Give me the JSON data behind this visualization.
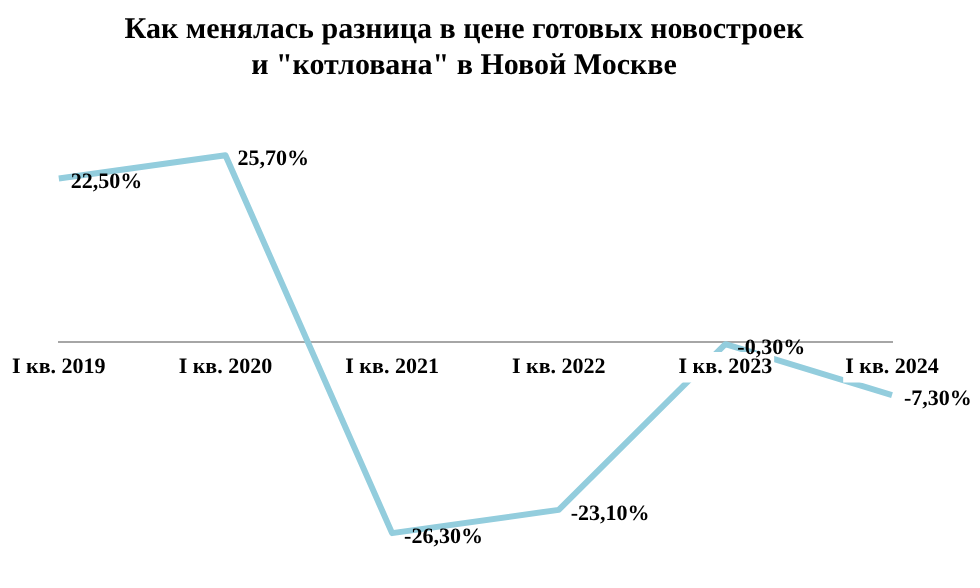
{
  "chart_data": {
    "type": "line",
    "title": [
      "Как менялась разница в цене готовых новостроек",
      "и \"котлована\" в Новой Москве"
    ],
    "categories": [
      "I кв. 2019",
      "I кв. 2020",
      "I кв. 2021",
      "I кв. 2022",
      "I кв. 2023",
      "I кв. 2024"
    ],
    "series": [
      {
        "color": "#93cddd",
        "values": [
          22.5,
          25.7,
          -26.3,
          -23.1,
          -0.3,
          -7.3
        ],
        "value_labels": [
          "22,50%",
          "25,70%",
          "-26,30%",
          "-23,10%",
          "-0,30%",
          "-7,30%"
        ]
      }
    ],
    "marker": "none",
    "grid": false,
    "legend": false,
    "tick_labels": "x"
  }
}
